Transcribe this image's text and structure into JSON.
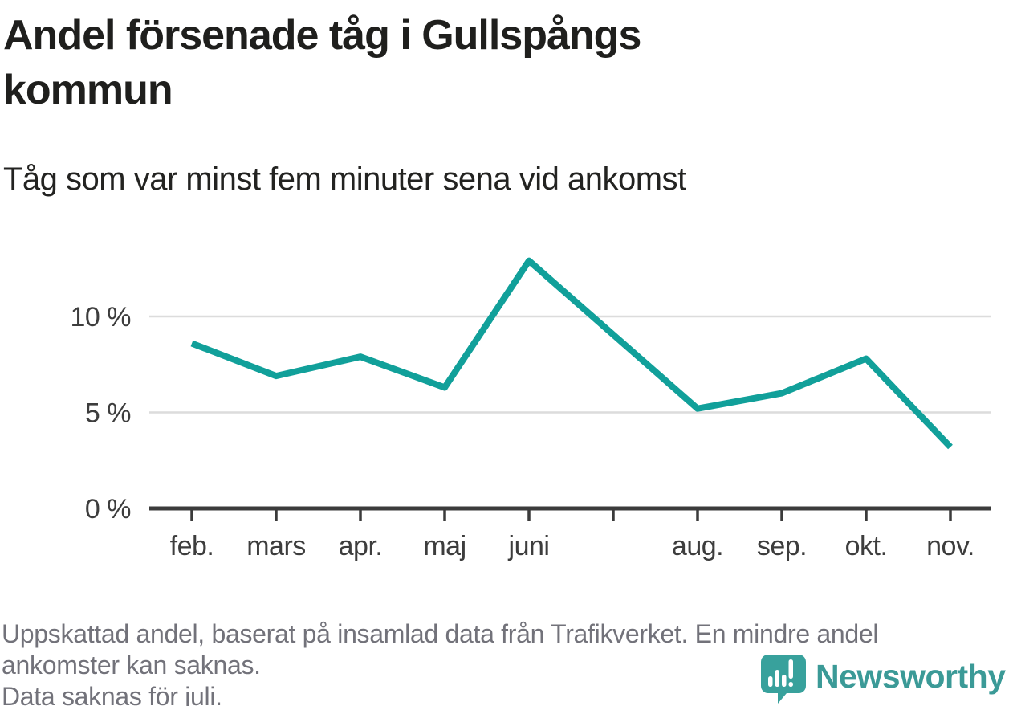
{
  "header": {
    "title": "Andel försenade tåg i Gullspångs kommun",
    "subtitle": "Tåg som var minst fem minuter sena vid ankomst"
  },
  "chart_data": {
    "type": "line",
    "title": "Andel försenade tåg i Gullspångs kommun",
    "subtitle": "Tåg som var minst fem minuter sena vid ankomst",
    "unit": "%",
    "categories": [
      "feb.",
      "mars",
      "apr.",
      "maj",
      "juni",
      "juli",
      "aug.",
      "sep.",
      "okt.",
      "nov."
    ],
    "tick_labels_shown": [
      "feb.",
      "mars",
      "apr.",
      "maj",
      "juni",
      "",
      "aug.",
      "sep.",
      "okt.",
      "nov."
    ],
    "values": [
      8.6,
      6.9,
      7.9,
      6.3,
      12.9,
      null,
      5.2,
      6.0,
      7.8,
      3.2
    ],
    "missing_data_months": [
      "juli"
    ],
    "y_ticks": [
      {
        "value": 0,
        "label": "0 %"
      },
      {
        "value": 5,
        "label": "5 %"
      },
      {
        "value": 10,
        "label": "10 %"
      }
    ],
    "ylim": [
      0,
      14
    ],
    "grid": "horizontal",
    "legend": "none",
    "line_color": "#11a09a",
    "grid_color": "#dcdcdc",
    "axis_color": "#3b3b3b",
    "label_color": "#3d3d3d"
  },
  "footer": {
    "lines": [
      "Uppskattad andel, baserat på insamlad data från Trafikverket. En mindre andel",
      "ankomster kan saknas.",
      "Data saknas för juli."
    ]
  },
  "branding": {
    "name": "Newsworthy",
    "logo_icon": "speech-bubble-bar-chart-icon",
    "brand_color": "#3b9a97",
    "logo_bubble_color": "#38a19c"
  }
}
